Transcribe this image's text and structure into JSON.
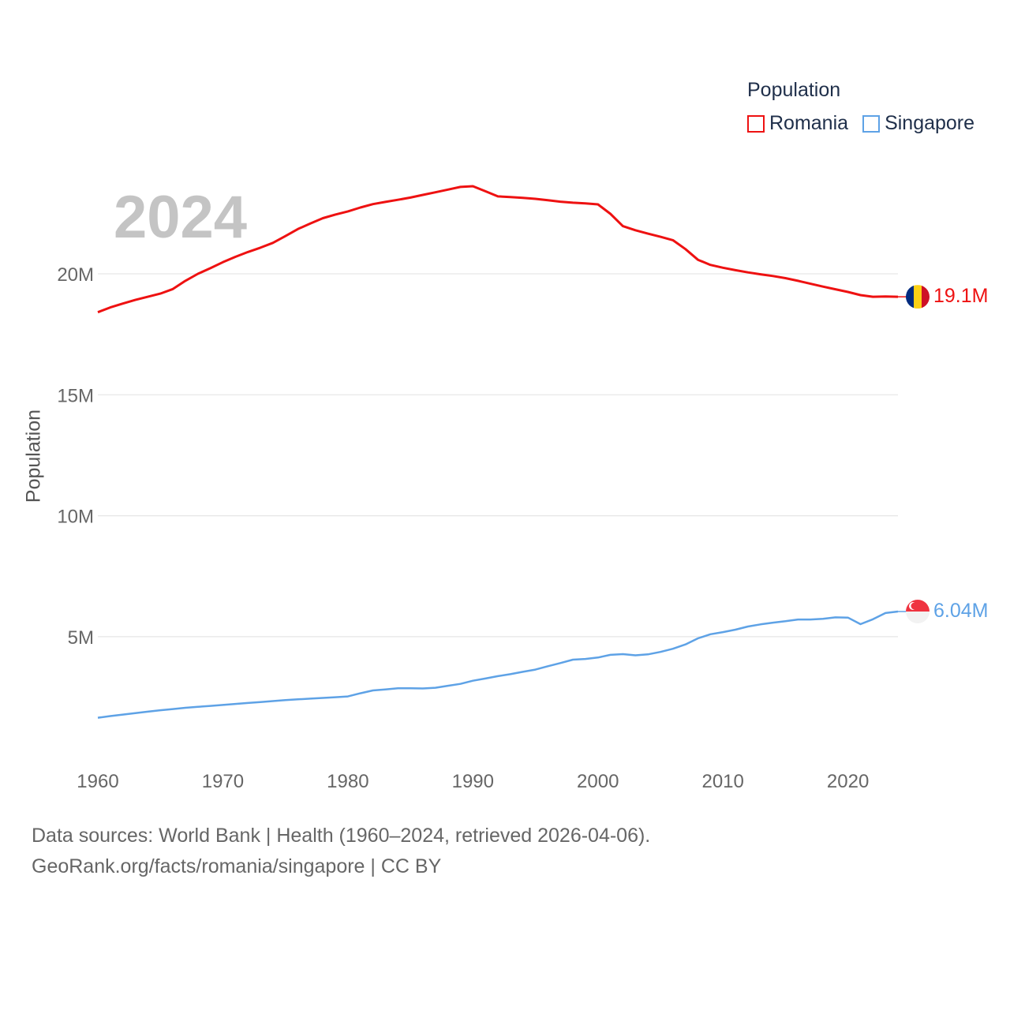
{
  "chart_data": {
    "type": "line",
    "year_display": "2024",
    "ylabel": "Population",
    "xlim": [
      1960,
      2024
    ],
    "ylim": [
      0,
      25000000
    ],
    "x_ticks": [
      {
        "value": 1960,
        "label": "1960"
      },
      {
        "value": 1970,
        "label": "1970"
      },
      {
        "value": 1980,
        "label": "1980"
      },
      {
        "value": 1990,
        "label": "1990"
      },
      {
        "value": 2000,
        "label": "2000"
      },
      {
        "value": 2010,
        "label": "2010"
      },
      {
        "value": 2020,
        "label": "2020"
      }
    ],
    "y_ticks": [
      {
        "value": 5000000,
        "label": "5M"
      },
      {
        "value": 10000000,
        "label": "10M"
      },
      {
        "value": 15000000,
        "label": "15M"
      },
      {
        "value": 20000000,
        "label": "20M"
      }
    ],
    "legend": {
      "title": "Population",
      "position": "top-right"
    },
    "series": [
      {
        "name": "Romania",
        "color": "#ee1111",
        "end_label": "19.1M",
        "flag": "romania-flag",
        "points": [
          [
            1960,
            18410000
          ],
          [
            1961,
            18610000
          ],
          [
            1962,
            18770000
          ],
          [
            1963,
            18920000
          ],
          [
            1964,
            19050000
          ],
          [
            1965,
            19180000
          ],
          [
            1966,
            19370000
          ],
          [
            1967,
            19710000
          ],
          [
            1968,
            20000000
          ],
          [
            1969,
            20230000
          ],
          [
            1970,
            20480000
          ],
          [
            1971,
            20700000
          ],
          [
            1972,
            20900000
          ],
          [
            1973,
            21080000
          ],
          [
            1974,
            21280000
          ],
          [
            1975,
            21560000
          ],
          [
            1976,
            21850000
          ],
          [
            1977,
            22080000
          ],
          [
            1978,
            22300000
          ],
          [
            1979,
            22450000
          ],
          [
            1980,
            22580000
          ],
          [
            1981,
            22740000
          ],
          [
            1982,
            22880000
          ],
          [
            1983,
            22970000
          ],
          [
            1984,
            23060000
          ],
          [
            1985,
            23150000
          ],
          [
            1986,
            23260000
          ],
          [
            1987,
            23370000
          ],
          [
            1988,
            23480000
          ],
          [
            1989,
            23590000
          ],
          [
            1990,
            23620000
          ],
          [
            1991,
            23410000
          ],
          [
            1992,
            23200000
          ],
          [
            1993,
            23170000
          ],
          [
            1994,
            23140000
          ],
          [
            1995,
            23100000
          ],
          [
            1996,
            23040000
          ],
          [
            1997,
            22980000
          ],
          [
            1998,
            22940000
          ],
          [
            1999,
            22910000
          ],
          [
            2000,
            22870000
          ],
          [
            2001,
            22480000
          ],
          [
            2002,
            21970000
          ],
          [
            2003,
            21800000
          ],
          [
            2004,
            21660000
          ],
          [
            2005,
            21530000
          ],
          [
            2006,
            21390000
          ],
          [
            2007,
            21020000
          ],
          [
            2008,
            20580000
          ],
          [
            2009,
            20370000
          ],
          [
            2010,
            20250000
          ],
          [
            2011,
            20150000
          ],
          [
            2012,
            20060000
          ],
          [
            2013,
            19980000
          ],
          [
            2014,
            19910000
          ],
          [
            2015,
            19820000
          ],
          [
            2016,
            19710000
          ],
          [
            2017,
            19590000
          ],
          [
            2018,
            19470000
          ],
          [
            2019,
            19360000
          ],
          [
            2020,
            19250000
          ],
          [
            2021,
            19120000
          ],
          [
            2022,
            19050000
          ],
          [
            2023,
            19060000
          ],
          [
            2024,
            19050000
          ]
        ]
      },
      {
        "name": "Singapore",
        "color": "#5ea2e6",
        "end_label": "6.04M",
        "flag": "singapore-flag",
        "points": [
          [
            1960,
            1650000
          ],
          [
            1961,
            1720000
          ],
          [
            1962,
            1780000
          ],
          [
            1963,
            1840000
          ],
          [
            1964,
            1900000
          ],
          [
            1965,
            1960000
          ],
          [
            1966,
            2010000
          ],
          [
            1967,
            2060000
          ],
          [
            1968,
            2100000
          ],
          [
            1969,
            2140000
          ],
          [
            1970,
            2180000
          ],
          [
            1971,
            2220000
          ],
          [
            1972,
            2260000
          ],
          [
            1973,
            2300000
          ],
          [
            1974,
            2340000
          ],
          [
            1975,
            2380000
          ],
          [
            1976,
            2410000
          ],
          [
            1977,
            2440000
          ],
          [
            1978,
            2470000
          ],
          [
            1979,
            2500000
          ],
          [
            1980,
            2530000
          ],
          [
            1981,
            2660000
          ],
          [
            1982,
            2780000
          ],
          [
            1983,
            2820000
          ],
          [
            1984,
            2870000
          ],
          [
            1985,
            2870000
          ],
          [
            1986,
            2860000
          ],
          [
            1987,
            2890000
          ],
          [
            1988,
            2970000
          ],
          [
            1989,
            3050000
          ],
          [
            1990,
            3180000
          ],
          [
            1991,
            3270000
          ],
          [
            1992,
            3370000
          ],
          [
            1993,
            3450000
          ],
          [
            1994,
            3550000
          ],
          [
            1995,
            3640000
          ],
          [
            1996,
            3780000
          ],
          [
            1997,
            3910000
          ],
          [
            1998,
            4050000
          ],
          [
            1999,
            4080000
          ],
          [
            2000,
            4140000
          ],
          [
            2001,
            4250000
          ],
          [
            2002,
            4280000
          ],
          [
            2003,
            4230000
          ],
          [
            2004,
            4270000
          ],
          [
            2005,
            4370000
          ],
          [
            2006,
            4500000
          ],
          [
            2007,
            4680000
          ],
          [
            2008,
            4930000
          ],
          [
            2009,
            5100000
          ],
          [
            2010,
            5190000
          ],
          [
            2011,
            5290000
          ],
          [
            2012,
            5420000
          ],
          [
            2013,
            5510000
          ],
          [
            2014,
            5580000
          ],
          [
            2015,
            5640000
          ],
          [
            2016,
            5710000
          ],
          [
            2017,
            5710000
          ],
          [
            2018,
            5740000
          ],
          [
            2019,
            5800000
          ],
          [
            2020,
            5790000
          ],
          [
            2021,
            5520000
          ],
          [
            2022,
            5720000
          ],
          [
            2023,
            5980000
          ],
          [
            2024,
            6040000
          ]
        ]
      }
    ]
  },
  "source": {
    "line1": "Data sources: World Bank | Health (1960–2024, retrieved 2026-04-06).",
    "line2": "GeoRank.org/facts/romania/singapore | CC BY"
  }
}
